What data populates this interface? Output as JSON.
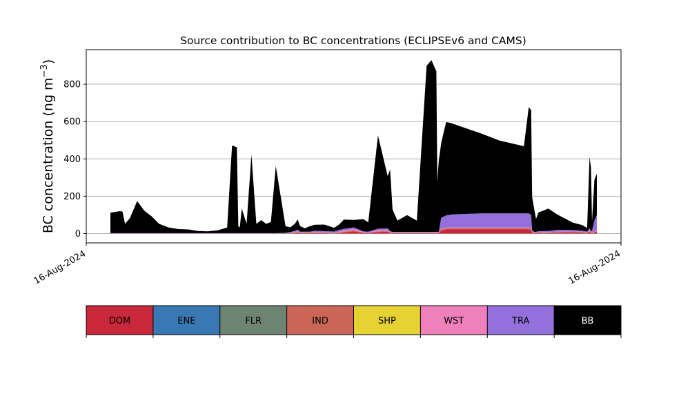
{
  "chart_data": {
    "type": "area",
    "title": "Source contribution to BC concentrations (ECLIPSEv6 and CAMS)",
    "ylabel": "BC concentration (ng m",
    "ylabel_sup": "−3",
    "ylabel_close": ")",
    "ylim": [
      -50,
      985
    ],
    "yticks": [
      0,
      200,
      400,
      600,
      800
    ],
    "xticks": [
      "16-Aug-2024",
      "16-Aug-2024"
    ],
    "grid": "y",
    "x": [
      0.0,
      0.02,
      0.025,
      0.03,
      0.04,
      0.055,
      0.07,
      0.085,
      0.1,
      0.12,
      0.14,
      0.16,
      0.18,
      0.2,
      0.22,
      0.24,
      0.25,
      0.26,
      0.263,
      0.266,
      0.27,
      0.28,
      0.29,
      0.3,
      0.31,
      0.32,
      0.33,
      0.34,
      0.36,
      0.37,
      0.38,
      0.385,
      0.39,
      0.4,
      0.41,
      0.42,
      0.44,
      0.46,
      0.47,
      0.48,
      0.5,
      0.52,
      0.53,
      0.55,
      0.57,
      0.575,
      0.58,
      0.59,
      0.61,
      0.63,
      0.65,
      0.66,
      0.67,
      0.672,
      0.675,
      0.68,
      0.69,
      0.7,
      0.72,
      0.74,
      0.76,
      0.8,
      0.85,
      0.86,
      0.865,
      0.867,
      0.872,
      0.875,
      0.88,
      0.89,
      0.9,
      0.92,
      0.95,
      0.97,
      0.98,
      0.985,
      0.988,
      0.99,
      0.995,
      1.0
    ],
    "series": [
      {
        "name": "DOM",
        "color": "#c8283a",
        "values": [
          0,
          0,
          0,
          0,
          0,
          0,
          0,
          0,
          0,
          0,
          0,
          0,
          0,
          0,
          0,
          0,
          0,
          0,
          0,
          0,
          0,
          0,
          0,
          0,
          0,
          0,
          0,
          0,
          0,
          1,
          3,
          4,
          2,
          2,
          2,
          3,
          2,
          1,
          3,
          6,
          12,
          3,
          2,
          8,
          10,
          3,
          2,
          2,
          2,
          2,
          2,
          2,
          2,
          2,
          2,
          16,
          22,
          22,
          22,
          22,
          22,
          22,
          22,
          22,
          20,
          4,
          2,
          2,
          4,
          3,
          3,
          5,
          6,
          5,
          2,
          10,
          2,
          3,
          4,
          12
        ]
      },
      {
        "name": "ENE",
        "color": "#3a78b4",
        "values": [
          0,
          0,
          0,
          0,
          0,
          0,
          0,
          0,
          0,
          0,
          0,
          0,
          0,
          0,
          0,
          0,
          0,
          0,
          0,
          0,
          0,
          0,
          0,
          0,
          0,
          0,
          0,
          0,
          0,
          0,
          0,
          0,
          0,
          0,
          0,
          0,
          0,
          0,
          0,
          0,
          0,
          0,
          0,
          0,
          0,
          0,
          0,
          0,
          0,
          0,
          0,
          0,
          0,
          0,
          0,
          0,
          0,
          0,
          0,
          0,
          0,
          0,
          0,
          0,
          0,
          0,
          0,
          0,
          0,
          0,
          0,
          0,
          0,
          0,
          0,
          0,
          0,
          0,
          0,
          0
        ]
      },
      {
        "name": "FLR",
        "color": "#6e8472",
        "values": [
          0,
          0,
          0,
          0,
          0,
          0,
          0,
          0,
          0,
          0,
          0,
          0,
          0,
          0,
          0,
          0,
          0,
          0,
          0,
          0,
          0,
          0,
          0,
          0,
          0,
          0,
          0,
          0,
          0,
          0,
          0,
          0,
          0,
          0,
          0,
          0,
          0,
          0,
          0,
          0,
          0,
          0,
          0,
          0,
          0,
          0,
          0,
          0,
          0,
          0,
          0,
          0,
          0,
          0,
          0,
          0,
          0,
          0,
          0,
          0,
          0,
          0,
          0,
          0,
          0,
          0,
          0,
          0,
          0,
          0,
          0,
          0,
          0,
          0,
          0,
          0,
          0,
          0,
          0,
          0
        ]
      },
      {
        "name": "IND",
        "color": "#cb6656",
        "values": [
          1,
          1,
          1,
          1,
          1,
          1,
          1,
          1,
          1,
          1,
          1,
          1,
          1,
          1,
          1,
          1,
          1,
          1,
          1,
          1,
          1,
          1,
          1,
          1,
          1,
          1,
          1,
          1,
          2,
          2,
          3,
          3,
          3,
          3,
          3,
          3,
          3,
          3,
          3,
          4,
          5,
          3,
          3,
          4,
          4,
          3,
          3,
          3,
          3,
          3,
          3,
          3,
          3,
          3,
          3,
          6,
          7,
          7,
          7,
          7,
          7,
          7,
          7,
          7,
          7,
          4,
          3,
          3,
          3,
          3,
          3,
          3,
          3,
          3,
          3,
          3,
          3,
          3,
          3,
          4
        ]
      },
      {
        "name": "SHP",
        "color": "#e6d232",
        "values": [
          0,
          0,
          0,
          0,
          0,
          0,
          0,
          0,
          0,
          0,
          0,
          0,
          0,
          0,
          0,
          0,
          0,
          0,
          0,
          0,
          0,
          0,
          0,
          0,
          0,
          0,
          0,
          0,
          0,
          0,
          0,
          0,
          0,
          0,
          0,
          0,
          0,
          0,
          0,
          0,
          0,
          0,
          0,
          0,
          0,
          0,
          0,
          0,
          0,
          0,
          0,
          0,
          0,
          0,
          0,
          0,
          0,
          0,
          0,
          0,
          0,
          0,
          0,
          0,
          0,
          0,
          0,
          0,
          0,
          0,
          0,
          0,
          0,
          0,
          0,
          0,
          0,
          0,
          0,
          0
        ]
      },
      {
        "name": "WST",
        "color": "#f080bc",
        "values": [
          0,
          0,
          0,
          0,
          0,
          0,
          0,
          0,
          0,
          0,
          0,
          0,
          0,
          0,
          0,
          0,
          0,
          0,
          0,
          0,
          0,
          0,
          0,
          0,
          0,
          0,
          0,
          0,
          0,
          1,
          3,
          4,
          2,
          2,
          2,
          3,
          2,
          2,
          4,
          5,
          8,
          3,
          2,
          6,
          6,
          3,
          2,
          2,
          2,
          2,
          2,
          2,
          2,
          2,
          2,
          3,
          3,
          3,
          3,
          3,
          3,
          3,
          3,
          3,
          3,
          2,
          2,
          2,
          2,
          2,
          2,
          2,
          2,
          2,
          2,
          6,
          2,
          2,
          3,
          4
        ]
      },
      {
        "name": "TRA",
        "color": "#9370db",
        "values": [
          1,
          1,
          1,
          1,
          1,
          1,
          1,
          1,
          1,
          1,
          1,
          1,
          1,
          1,
          1,
          1,
          1,
          1,
          1,
          1,
          1,
          1,
          1,
          1,
          1,
          1,
          1,
          1,
          2,
          4,
          6,
          10,
          3,
          3,
          3,
          6,
          6,
          5,
          10,
          10,
          8,
          3,
          3,
          8,
          8,
          4,
          2,
          2,
          2,
          2,
          2,
          2,
          2,
          2,
          2,
          60,
          65,
          70,
          72,
          74,
          76,
          76,
          76,
          76,
          70,
          6,
          2,
          2,
          4,
          5,
          6,
          10,
          8,
          5,
          3,
          10,
          5,
          8,
          60,
          80
        ]
      },
      {
        "name": "BB",
        "color": "#000000",
        "values": [
          110,
          118,
          115,
          50,
          80,
          172,
          120,
          90,
          50,
          30,
          22,
          20,
          12,
          10,
          15,
          30,
          470,
          460,
          38,
          30,
          132,
          50,
          420,
          50,
          70,
          50,
          60,
          360,
          35,
          25,
          40,
          55,
          30,
          18,
          30,
          32,
          35,
          20,
          28,
          50,
          40,
          65,
          50,
          500,
          280,
          330,
          120,
          60,
          90,
          60,
          890,
          920,
          860,
          270,
          380,
          400,
          500,
          490,
          470,
          450,
          430,
          390,
          360,
          570,
          560,
          180,
          110,
          70,
          100,
          110,
          120,
          80,
          40,
          30,
          20,
          380,
          340,
          50,
          220,
          220
        ]
      }
    ]
  },
  "legend": [
    {
      "label": "DOM",
      "color": "#c8283a",
      "text_color": "#000000"
    },
    {
      "label": "ENE",
      "color": "#3a78b4",
      "text_color": "#000000"
    },
    {
      "label": "FLR",
      "color": "#6e8472",
      "text_color": "#000000"
    },
    {
      "label": "IND",
      "color": "#cb6656",
      "text_color": "#000000"
    },
    {
      "label": "SHP",
      "color": "#e6d232",
      "text_color": "#000000"
    },
    {
      "label": "WST",
      "color": "#f080bc",
      "text_color": "#000000"
    },
    {
      "label": "TRA",
      "color": "#9370db",
      "text_color": "#000000"
    },
    {
      "label": "BB",
      "color": "#000000",
      "text_color": "#ffffff"
    }
  ]
}
